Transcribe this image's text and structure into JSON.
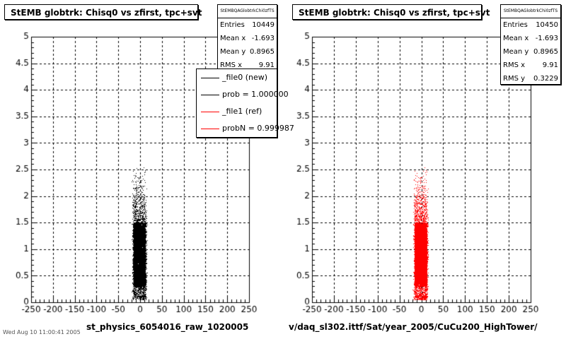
{
  "panels": [
    {
      "title": "StEMB globtrk: Chisq0 vs zfirst, tpc+svt",
      "stats": {
        "name": "StEMBQAGlobtrkChi0zfTS",
        "rows": [
          {
            "label": "Entries",
            "value": "10449"
          },
          {
            "label": "Mean x",
            "value": "-1.693"
          },
          {
            "label": "Mean y",
            "value": "0.8965"
          },
          {
            "label": "RMS x",
            "value": "9.91"
          }
        ]
      },
      "legend": [
        {
          "label": "_file0 (new)",
          "color": "#000000"
        },
        {
          "label": "prob = 1.000000",
          "color": "#000000"
        },
        {
          "label": "_file1 (ref)",
          "color": "#ff0000"
        },
        {
          "label": "probN = 0.999987",
          "color": "#ff0000"
        }
      ],
      "x_title": "st_physics_6054016_raw_1020005"
    },
    {
      "title": "StEMB globtrk: Chisq0 vs zfirst, tpc+svt",
      "stats": {
        "name": "StEMBQAGlobtrkChi0zfTS",
        "rows": [
          {
            "label": "Entries",
            "value": "10450"
          },
          {
            "label": "Mean x",
            "value": "-1.693"
          },
          {
            "label": "Mean y",
            "value": "0.8965"
          },
          {
            "label": "RMS x",
            "value": "9.91"
          },
          {
            "label": "RMS y",
            "value": "0.3229"
          }
        ]
      },
      "x_title": "v/daq_sl302.ittf/Sat/year_2005/CuCu200_HighTower/"
    }
  ],
  "footer": "Wed Aug 10 11:00:41 2005",
  "chart_data": [
    {
      "type": "scatter",
      "title": "StEMB globtrk: Chisq0 vs zfirst, tpc+svt",
      "xlim": [
        -250,
        250
      ],
      "ylim": [
        0,
        5
      ],
      "x_ticks": [
        "-250",
        "-200",
        "-150",
        "-100",
        "-50",
        "0",
        "50",
        "100",
        "150",
        "200",
        "250"
      ],
      "y_ticks": [
        "0",
        "0.5",
        "1",
        "1.5",
        "2",
        "2.5",
        "3",
        "3.5",
        "4",
        "4.5",
        "5"
      ],
      "grid": true,
      "series": [
        {
          "name": "_file0 (new)",
          "color": "#000000",
          "entries": 10449,
          "mean_x": -1.693,
          "mean_y": 0.8965,
          "rms_x": 9.91
        }
      ],
      "legend_position": "top-right"
    },
    {
      "type": "scatter",
      "title": "StEMB globtrk: Chisq0 vs zfirst, tpc+svt",
      "xlim": [
        -250,
        250
      ],
      "ylim": [
        0,
        5
      ],
      "x_ticks": [
        "-250",
        "-200",
        "-150",
        "-100",
        "-50",
        "0",
        "50",
        "100",
        "150",
        "200",
        "250"
      ],
      "y_ticks": [
        "0",
        "0.5",
        "1",
        "1.5",
        "2",
        "2.5",
        "3",
        "3.5",
        "4",
        "4.5",
        "5"
      ],
      "grid": true,
      "series": [
        {
          "name": "_file1 (ref)",
          "color": "#ff0000",
          "entries": 10450,
          "mean_x": -1.693,
          "mean_y": 0.8965,
          "rms_x": 9.91,
          "rms_y": 0.3229
        }
      ]
    }
  ]
}
